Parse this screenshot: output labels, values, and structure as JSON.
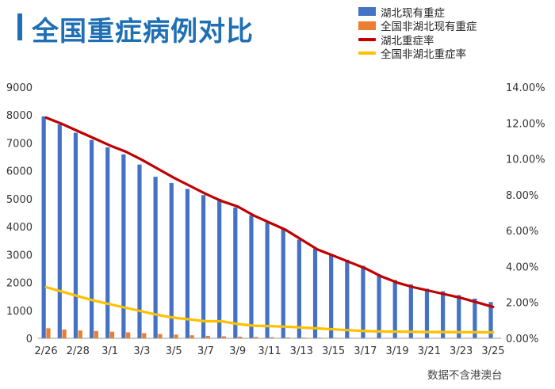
{
  "title": "全国重症病例对比",
  "footnote": "数据不含港澳台",
  "colors": {
    "hubei_bar": "#4472c4",
    "nonhubei_bar": "#ed7d31",
    "hubei_line": "#c00000",
    "nonhubei_line": "#ffc000",
    "title": "#1f6fb5"
  },
  "chart_data": {
    "type": "bar",
    "title": "全国重症病例对比",
    "xlabel": "",
    "ylabel": "",
    "x_tick_labels": [
      "2/26",
      "2/28",
      "3/1",
      "3/3",
      "3/5",
      "3/7",
      "3/9",
      "3/11",
      "3/13",
      "3/15",
      "3/17",
      "3/19",
      "3/21",
      "3/23",
      "3/25"
    ],
    "categories": [
      "2/26",
      "2/27",
      "2/28",
      "2/29",
      "3/1",
      "3/2",
      "3/3",
      "3/4",
      "3/5",
      "3/6",
      "3/7",
      "3/8",
      "3/9",
      "3/10",
      "3/11",
      "3/12",
      "3/13",
      "3/14",
      "3/15",
      "3/16",
      "3/17",
      "3/18",
      "3/19",
      "3/20",
      "3/21",
      "3/22",
      "3/23",
      "3/24",
      "3/25"
    ],
    "ylim": [
      0,
      9000
    ],
    "y_ticks": [
      0,
      1000,
      2000,
      3000,
      4000,
      5000,
      6000,
      7000,
      8000,
      9000
    ],
    "y2lim": [
      0,
      14
    ],
    "y2_ticks": [
      "0.00%",
      "2.00%",
      "4.00%",
      "6.00%",
      "8.00%",
      "10.00%",
      "12.00%",
      "14.00%"
    ],
    "legend": {
      "position": "top-right",
      "entries": [
        "湖北现有重症",
        "全国非湖北现有重症",
        "湖北重症率",
        "全国非湖北重症率"
      ]
    },
    "series": [
      {
        "name": "湖北现有重症",
        "type": "bar",
        "axis": "left",
        "values": [
          7952,
          7664,
          7365,
          7110,
          6843,
          6593,
          6226,
          5789,
          5567,
          5353,
          5132,
          4998,
          4689,
          4407,
          4148,
          3939,
          3536,
          3213,
          2997,
          2815,
          2599,
          2285,
          2088,
          1932,
          1776,
          1686,
          1549,
          1423,
          1298
        ]
      },
      {
        "name": "全国非湖北现有重症",
        "type": "bar",
        "axis": "left",
        "values": [
          359,
          313,
          280,
          260,
          236,
          213,
          185,
          151,
          132,
          107,
          88,
          70,
          58,
          48,
          38,
          30,
          25,
          20,
          18,
          16,
          14,
          12,
          10,
          10,
          10,
          9,
          9,
          8,
          8
        ]
      },
      {
        "name": "湖北重症率",
        "type": "line",
        "axis": "right",
        "values": [
          12.3,
          11.95,
          11.55,
          11.15,
          10.75,
          10.4,
          9.95,
          9.45,
          8.95,
          8.5,
          8.05,
          7.65,
          7.35,
          6.85,
          6.45,
          6.05,
          5.5,
          4.95,
          4.6,
          4.25,
          3.9,
          3.45,
          3.1,
          2.85,
          2.65,
          2.45,
          2.25,
          2.0,
          1.75
        ]
      },
      {
        "name": "全国非湖北重症率",
        "type": "line",
        "axis": "right",
        "values": [
          2.85,
          2.6,
          2.35,
          2.1,
          1.9,
          1.7,
          1.5,
          1.3,
          1.15,
          1.05,
          0.95,
          0.95,
          0.8,
          0.7,
          0.68,
          0.65,
          0.6,
          0.55,
          0.5,
          0.45,
          0.4,
          0.38,
          0.37,
          0.36,
          0.35,
          0.35,
          0.34,
          0.34,
          0.33
        ]
      }
    ]
  }
}
